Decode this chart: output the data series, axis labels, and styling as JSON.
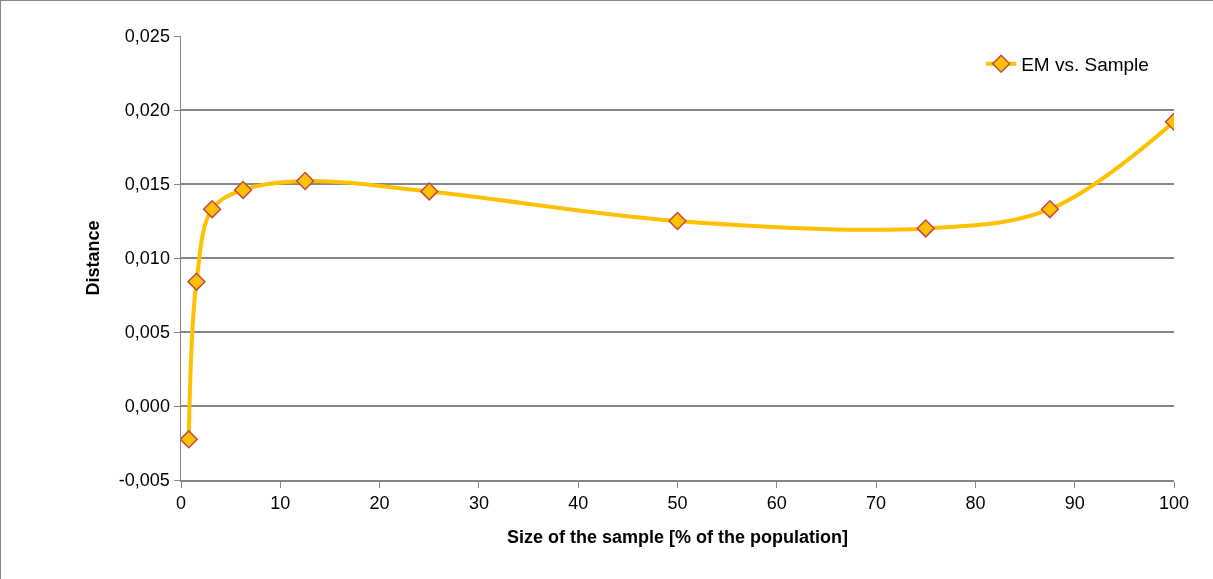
{
  "chart_data": {
    "type": "line",
    "xlabel": "Size of the sample [% of the population]",
    "ylabel": "Distance",
    "x": [
      0.78,
      1.56,
      3.13,
      6.25,
      12.5,
      25,
      50,
      75,
      87.5,
      100
    ],
    "series": [
      {
        "name": "EM vs. Sample",
        "color": "#ffc000",
        "values": [
          -0.00225,
          0.0084,
          0.0133,
          0.0146,
          0.0152,
          0.0145,
          0.0125,
          0.012,
          0.0133,
          0.0192
        ]
      }
    ],
    "xlim": [
      0,
      100
    ],
    "xticks": [
      0,
      10,
      20,
      30,
      40,
      50,
      60,
      70,
      80,
      90,
      100
    ],
    "ylim": [
      -0.005,
      0.025
    ],
    "yticks": [
      {
        "value": -0.005,
        "label": "-0,005"
      },
      {
        "value": 0,
        "label": "0,000"
      },
      {
        "value": 0.005,
        "label": "0,005"
      },
      {
        "value": 0.01,
        "label": "0,010"
      },
      {
        "value": 0.015,
        "label": "0,015"
      },
      {
        "value": 0.02,
        "label": "0,020"
      },
      {
        "value": 0.025,
        "label": "0,025"
      }
    ],
    "grid": "y",
    "legend": "top right",
    "marker": "diamond",
    "line_style": "solid"
  }
}
